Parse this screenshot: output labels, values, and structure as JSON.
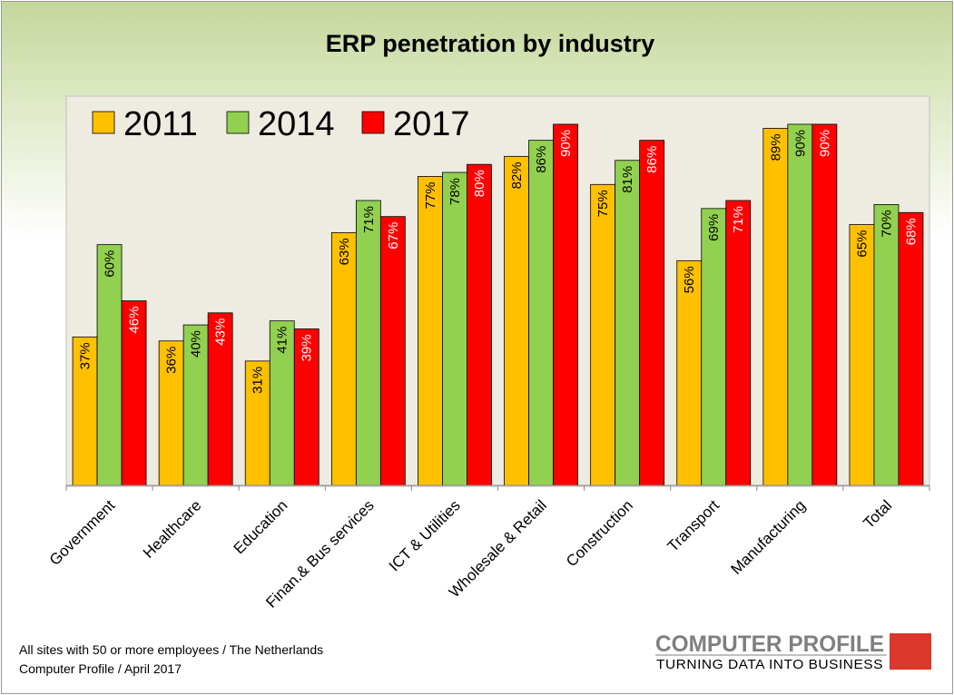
{
  "chart_data": {
    "type": "bar",
    "title": "ERP penetration by industry",
    "categories": [
      "Government",
      "Healthcare",
      "Education",
      "Finan.& Bus services",
      "ICT & Utilities",
      "Wholesale & Retail",
      "Construction",
      "Transport",
      "Manufacturing",
      "Total"
    ],
    "series": [
      {
        "name": "2011",
        "color": "#ffc000",
        "values": [
          37,
          36,
          31,
          63,
          77,
          82,
          75,
          56,
          89,
          65
        ],
        "labels": [
          "37%",
          "36%",
          "31%",
          "63%",
          "77%",
          "82%",
          "75%",
          "56%",
          "89%",
          "65%"
        ],
        "label_color": "#000000"
      },
      {
        "name": "2014",
        "color": "#92d050",
        "values": [
          60,
          40,
          41,
          71,
          78,
          86,
          81,
          69,
          90,
          70
        ],
        "labels": [
          "60%",
          "40%",
          "41%",
          "71%",
          "78%",
          "86%",
          "81%",
          "69%",
          "90%",
          "70%"
        ],
        "label_color": "#000000"
      },
      {
        "name": "2017",
        "color": "#ff0000",
        "values": [
          46,
          43,
          39,
          67,
          80,
          90,
          86,
          71,
          90,
          68
        ],
        "labels": [
          "46%",
          "43%",
          "39%",
          "67%",
          "80%",
          "90%",
          "86%",
          "71%",
          "90%",
          "68%"
        ],
        "label_color": "#ffffff"
      }
    ],
    "ylim": [
      0,
      97
    ],
    "grid": false,
    "legend_position": "top-left"
  },
  "footer": {
    "source_line1": "All sites with 50 or more employees  / The Netherlands",
    "source_line2": "Computer Profile / April 2017"
  },
  "logo": {
    "name": "COMPUTER PROFILE",
    "tagline": "TURNING DATA INTO BUSINESS",
    "accent_color": "#d9382b"
  },
  "colors": {
    "plot_background": "#eeece1",
    "header_green": "#c4d79b"
  }
}
